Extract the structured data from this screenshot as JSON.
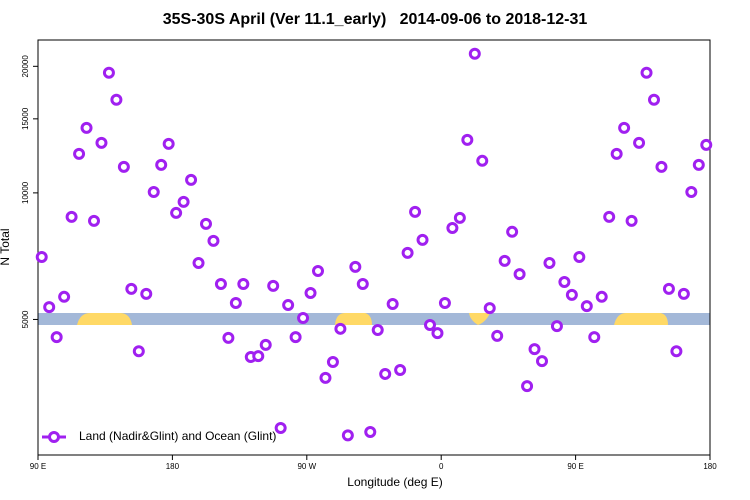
{
  "chart_data": {
    "type": "scatter",
    "title": "35S-30S April (Ver 11.1_early)   2014-09-06 to 2018-12-31",
    "x_label": "Longitude (deg E)",
    "y_label": "N Total",
    "x": [
      92.5,
      97.5,
      102.5,
      107.5,
      112.5,
      117.5,
      122.5,
      127.5,
      132.5,
      137.5,
      142.5,
      147.5,
      152.5,
      157.5,
      162.5,
      167.5,
      172.5,
      177.5,
      182.5,
      187.5,
      192.5,
      197.5,
      202.5,
      207.5,
      212.5,
      217.5,
      222.5,
      227.5,
      232.5,
      237.5,
      242.5,
      247.5,
      252.5,
      257.5,
      262.5,
      267.5,
      272.5,
      277.5,
      282.5,
      287.5,
      292.5,
      297.5,
      302.5,
      307.5,
      312.5,
      317.5,
      322.5,
      327.5,
      332.5,
      337.5,
      342.5,
      347.5,
      352.5,
      357.5,
      362.5,
      367.5,
      372.5,
      377.5,
      382.5,
      387.5,
      392.5,
      397.5,
      402.5,
      407.5,
      412.5,
      417.5,
      422.5,
      427.5,
      432.5,
      437.5,
      442.5,
      447.5,
      452.5,
      457.5,
      462.5,
      467.5,
      472.5,
      477.5,
      482.5,
      487.5,
      492.5,
      497.5,
      502.5,
      507.5,
      512.5,
      517.5,
      522.5,
      527.5,
      532.5,
      537.5
    ],
    "series": [
      {
        "name": "Land (Nadir&Glint) and Ocean (Glint)",
        "color": "#a020f0",
        "values": [
          7040,
          5350,
          4540,
          5660,
          8770,
          12380,
          14280,
          8580,
          13150,
          19310,
          16650,
          11530,
          5910,
          4200,
          5750,
          10050,
          11660,
          13080,
          8960,
          9520,
          10740,
          6810,
          8440,
          7690,
          6070,
          4520,
          5470,
          6070,
          4070,
          4090,
          4350,
          6010,
          2760,
          5410,
          4540,
          5040,
          5780,
          6520,
          3630,
          3960,
          4750,
          2650,
          6670,
          6070,
          2700,
          4720,
          3710,
          5440,
          3790,
          7200,
          9010,
          7730,
          4850,
          4640,
          5470,
          8250,
          8720,
          13370,
          21420,
          11920,
          5320,
          4570,
          6890,
          8080,
          6410,
          3470,
          4250,
          3980,
          6810,
          4820,
          6140,
          5720,
          7040,
          5380,
          4540,
          5660,
          8770,
          12380,
          14280,
          8580,
          13150,
          19310,
          16650,
          11530,
          5910,
          4200,
          5750,
          10050,
          11660,
          13010
        ]
      }
    ],
    "xlim": [
      90,
      540
    ],
    "xticks": [
      {
        "value": 90,
        "label": "90 E"
      },
      180,
      {
        "value": 270,
        "label": "90 W"
      },
      {
        "value": 360,
        "label": "0"
      },
      {
        "value": 450,
        "label": "90 E"
      },
      {
        "value": 540,
        "label": "180"
      }
    ],
    "ylim": [
      2380,
      23100
    ],
    "yticks": [
      5000,
      10000,
      15000,
      20000
    ],
    "ylog": true,
    "legend": "bottom-left"
  }
}
